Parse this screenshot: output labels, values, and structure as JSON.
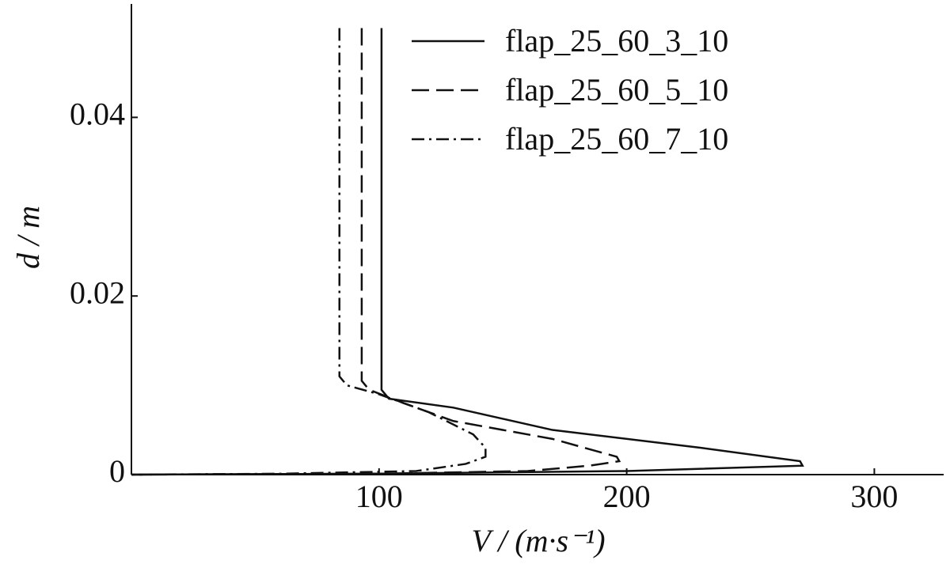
{
  "chart_data": {
    "type": "line",
    "xlabel": "V / (m·s⁻¹)",
    "ylabel": "d / m",
    "xlim": [
      0,
      328
    ],
    "ylim": [
      0,
      0.0527
    ],
    "xticks": [
      100,
      200,
      300
    ],
    "yticks": [
      0,
      0.02,
      0.04
    ],
    "series": [
      {
        "name": "flap_25_60_3_10",
        "color": "#111111",
        "style": "solid",
        "x": [
          101,
          101,
          104,
          130,
          170,
          230,
          270,
          271,
          200,
          100,
          0
        ],
        "y": [
          0.05,
          0.0095,
          0.0085,
          0.0075,
          0.005,
          0.003,
          0.0015,
          0.001,
          0.0004,
          0.0001,
          0
        ]
      },
      {
        "name": "flap_25_60_5_10",
        "color": "#111111",
        "style": "dashed",
        "x": [
          93,
          93,
          96,
          110,
          130,
          170,
          196,
          197,
          185,
          160,
          100,
          0
        ],
        "y": [
          0.05,
          0.0105,
          0.0095,
          0.008,
          0.006,
          0.004,
          0.002,
          0.0015,
          0.001,
          0.0004,
          0.0001,
          0
        ]
      },
      {
        "name": "flap_25_60_7_10",
        "color": "#111111",
        "style": "dashdot",
        "x": [
          84,
          84,
          87,
          100,
          120,
          138,
          143,
          143,
          135,
          115,
          60,
          0
        ],
        "y": [
          0.05,
          0.011,
          0.01,
          0.009,
          0.007,
          0.0045,
          0.003,
          0.002,
          0.0012,
          0.0004,
          0.0001,
          0
        ]
      }
    ]
  }
}
